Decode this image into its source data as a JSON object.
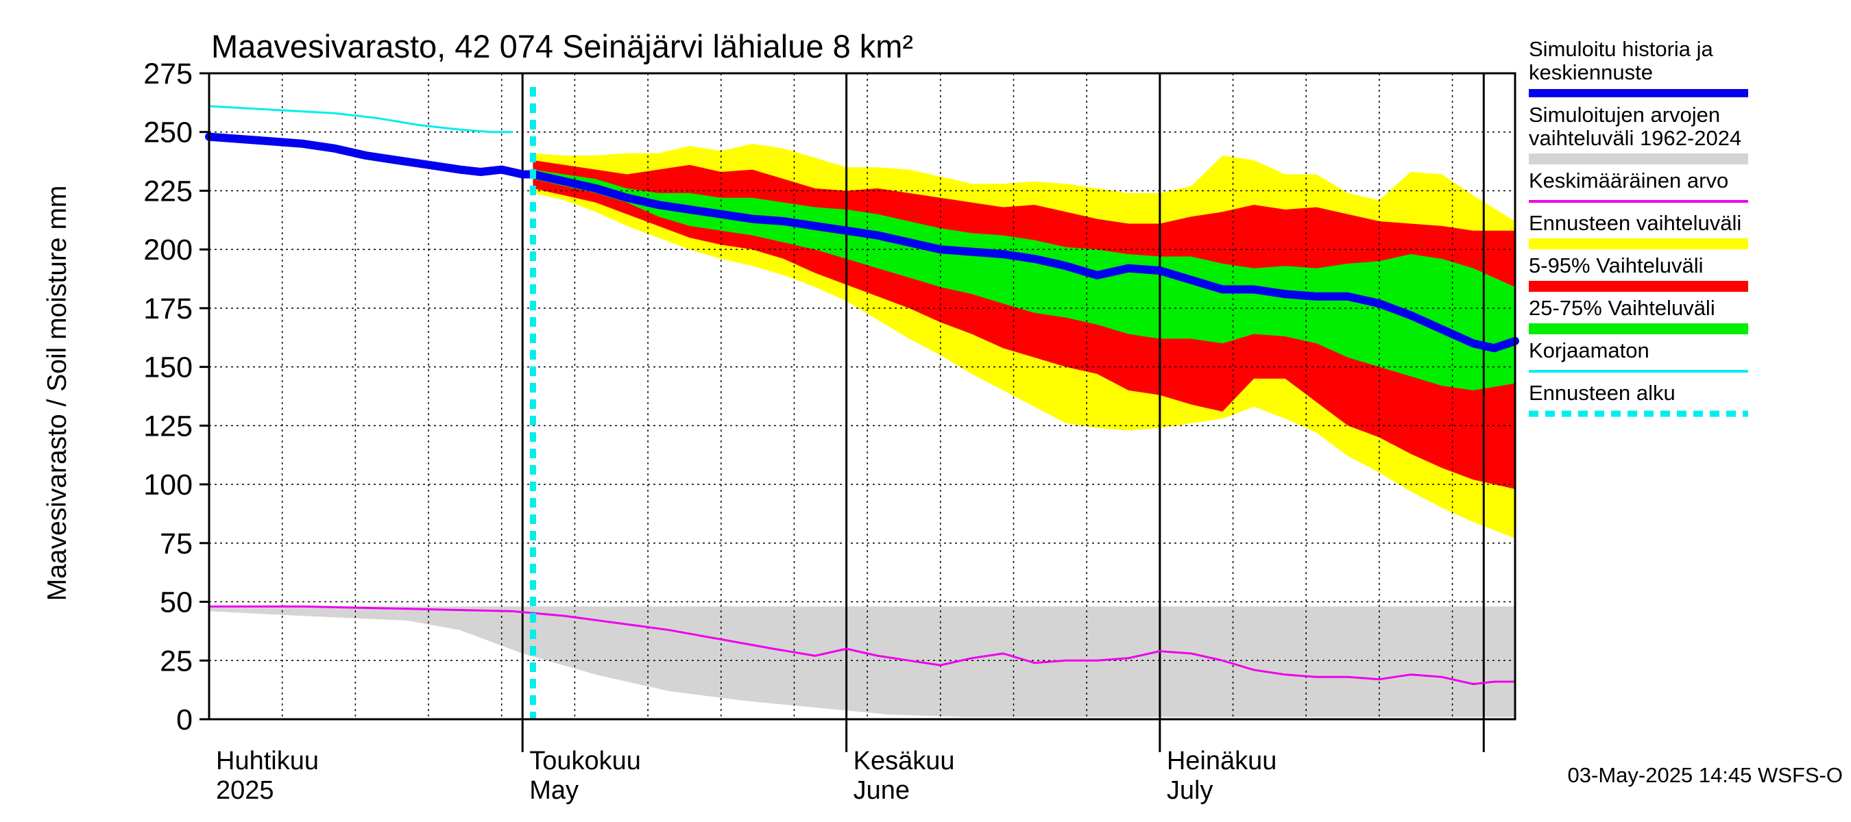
{
  "chart_data": {
    "type": "area",
    "title": "Maavesivarasto, 42 074 Seinäjärvi lähialue 8 km²",
    "ylabel": "Maavesivarasto / Soil moisture   mm",
    "ylim": [
      0,
      275
    ],
    "yticks": [
      "0",
      "25",
      "50",
      "75",
      "100",
      "125",
      "150",
      "175",
      "200",
      "225",
      "250",
      "275"
    ],
    "x_start": "2025-04-01",
    "x_end": "2025-08-04",
    "forecast_start": "2025-05-02",
    "months": [
      {
        "fi": "Huhtikuu",
        "en": "2025",
        "date": "2025-04-01"
      },
      {
        "fi": "Toukokuu",
        "en": "May",
        "date": "2025-05-01"
      },
      {
        "fi": "Kesäkuu",
        "en": "June",
        "date": "2025-06-01"
      },
      {
        "fi": "Heinäkuu",
        "en": "July",
        "date": "2025-07-01"
      }
    ],
    "legend": [
      {
        "label": "Simuloitu historia ja keskiennuste",
        "color": "#0000ee",
        "style": "thick-line"
      },
      {
        "label": "Simuloitujen arvojen vaihteluväli 1962-2024",
        "color": "#d4d4d4",
        "style": "band"
      },
      {
        "label": "Keskimääräinen arvo",
        "color": "#ee00ee",
        "style": "line"
      },
      {
        "label": "Ennusteen vaihteluväli",
        "color": "#ffff00",
        "style": "band"
      },
      {
        "label": "5-95% Vaihteluväli",
        "color": "#ff0000",
        "style": "band"
      },
      {
        "label": "25-75% Vaihteluväli",
        "color": "#00ee00",
        "style": "band"
      },
      {
        "label": "Korjaamaton",
        "color": "#00eeee",
        "style": "line"
      },
      {
        "label": "Ennusteen alku",
        "color": "#00eeee",
        "style": "dashed"
      }
    ],
    "footer": "03-May-2025 14:45 WSFS-O",
    "series": [
      {
        "name": "Simuloitu historia ja keskiennuste",
        "color": "#0000ee",
        "dates": [
          "2025-04-01",
          "2025-04-04",
          "2025-04-07",
          "2025-04-10",
          "2025-04-13",
          "2025-04-16",
          "2025-04-19",
          "2025-04-22",
          "2025-04-25",
          "2025-04-27",
          "2025-04-29",
          "2025-05-01",
          "2025-05-02",
          "2025-05-05",
          "2025-05-08",
          "2025-05-11",
          "2025-05-14",
          "2025-05-17",
          "2025-05-20",
          "2025-05-23",
          "2025-05-26",
          "2025-05-29",
          "2025-06-01",
          "2025-06-04",
          "2025-06-07",
          "2025-06-10",
          "2025-06-13",
          "2025-06-16",
          "2025-06-19",
          "2025-06-22",
          "2025-06-25",
          "2025-06-28",
          "2025-07-01",
          "2025-07-04",
          "2025-07-07",
          "2025-07-10",
          "2025-07-13",
          "2025-07-16",
          "2025-07-19",
          "2025-07-22",
          "2025-07-25",
          "2025-07-28",
          "2025-07-31",
          "2025-08-02",
          "2025-08-04"
        ],
        "values": [
          248,
          247,
          246,
          245,
          243,
          240,
          238,
          236,
          234,
          233,
          234,
          232,
          232,
          229,
          226,
          222,
          219,
          217,
          215,
          213,
          212,
          210,
          208,
          206,
          203,
          200,
          199,
          198,
          196,
          193,
          189,
          192,
          191,
          187,
          183,
          183,
          181,
          180,
          180,
          177,
          172,
          166,
          160,
          158,
          161
        ]
      },
      {
        "name": "Korjaamaton",
        "color": "#00eeee",
        "dates": [
          "2025-04-01",
          "2025-04-05",
          "2025-04-09",
          "2025-04-13",
          "2025-04-17",
          "2025-04-21",
          "2025-04-25",
          "2025-04-28",
          "2025-04-30"
        ],
        "values": [
          261,
          260,
          259,
          258,
          256,
          253,
          251,
          250,
          250
        ]
      },
      {
        "name": "Keskimääräinen arvo",
        "color": "#ee00ee",
        "dates": [
          "2025-04-01",
          "2025-04-10",
          "2025-04-20",
          "2025-04-30",
          "2025-05-05",
          "2025-05-10",
          "2025-05-15",
          "2025-05-20",
          "2025-05-25",
          "2025-05-29",
          "2025-06-01",
          "2025-06-04",
          "2025-06-07",
          "2025-06-10",
          "2025-06-13",
          "2025-06-16",
          "2025-06-19",
          "2025-06-22",
          "2025-06-25",
          "2025-06-28",
          "2025-07-01",
          "2025-07-04",
          "2025-07-07",
          "2025-07-10",
          "2025-07-13",
          "2025-07-16",
          "2025-07-19",
          "2025-07-22",
          "2025-07-25",
          "2025-07-28",
          "2025-07-31",
          "2025-08-02",
          "2025-08-04"
        ],
        "values": [
          48,
          48,
          47,
          46,
          44,
          41,
          38,
          34,
          30,
          27,
          30,
          27,
          25,
          23,
          26,
          28,
          24,
          25,
          25,
          26,
          29,
          28,
          25,
          21,
          19,
          18,
          18,
          17,
          19,
          18,
          15,
          16,
          16
        ]
      }
    ],
    "bands": [
      {
        "name": "Simuloitujen arvojen vaihteluväli 1962-2024",
        "color": "#d4d4d4",
        "dates": [
          "2025-04-01",
          "2025-04-10",
          "2025-04-20",
          "2025-04-25",
          "2025-05-01",
          "2025-05-08",
          "2025-05-15",
          "2025-05-22",
          "2025-05-29",
          "2025-06-05",
          "2025-06-12",
          "2025-06-19",
          "2025-06-26",
          "2025-07-03",
          "2025-07-10",
          "2025-07-17",
          "2025-07-24",
          "2025-07-31",
          "2025-08-04"
        ],
        "upper": [
          48,
          48,
          48,
          48,
          48,
          48,
          48,
          48,
          48,
          48,
          48,
          48,
          48,
          48,
          48,
          48,
          48,
          48,
          48
        ],
        "lower": [
          46,
          44,
          42,
          38,
          28,
          19,
          12,
          8,
          5,
          2,
          1,
          1,
          1,
          1,
          1,
          1,
          1,
          1,
          1
        ]
      },
      {
        "name": "Ennusteen vaihteluväli",
        "color": "#ffff00",
        "dates": [
          "2025-05-02",
          "2025-05-05",
          "2025-05-08",
          "2025-05-11",
          "2025-05-14",
          "2025-05-17",
          "2025-05-20",
          "2025-05-23",
          "2025-05-26",
          "2025-05-29",
          "2025-06-01",
          "2025-06-04",
          "2025-06-07",
          "2025-06-10",
          "2025-06-13",
          "2025-06-16",
          "2025-06-19",
          "2025-06-22",
          "2025-06-25",
          "2025-06-28",
          "2025-07-01",
          "2025-07-04",
          "2025-07-07",
          "2025-07-10",
          "2025-07-13",
          "2025-07-16",
          "2025-07-19",
          "2025-07-22",
          "2025-07-25",
          "2025-07-28",
          "2025-07-31",
          "2025-08-04"
        ],
        "upper": [
          241,
          240,
          240,
          241,
          241,
          244,
          242,
          245,
          243,
          239,
          235,
          235,
          234,
          231,
          228,
          228,
          229,
          228,
          226,
          224,
          224,
          227,
          240,
          238,
          232,
          232,
          224,
          221,
          233,
          232,
          223,
          212
        ],
        "lower": [
          224,
          221,
          216,
          210,
          205,
          200,
          196,
          193,
          189,
          184,
          178,
          170,
          162,
          155,
          147,
          140,
          133,
          126,
          124,
          123,
          124,
          126,
          128,
          133,
          128,
          122,
          112,
          105,
          97,
          90,
          84,
          77
        ]
      },
      {
        "name": "5-95% Vaihteluväli",
        "color": "#ff0000",
        "dates": [
          "2025-05-02",
          "2025-05-05",
          "2025-05-08",
          "2025-05-11",
          "2025-05-14",
          "2025-05-17",
          "2025-05-20",
          "2025-05-23",
          "2025-05-26",
          "2025-05-29",
          "2025-06-01",
          "2025-06-04",
          "2025-06-07",
          "2025-06-10",
          "2025-06-13",
          "2025-06-16",
          "2025-06-19",
          "2025-06-22",
          "2025-06-25",
          "2025-06-28",
          "2025-07-01",
          "2025-07-04",
          "2025-07-07",
          "2025-07-10",
          "2025-07-13",
          "2025-07-16",
          "2025-07-19",
          "2025-07-22",
          "2025-07-25",
          "2025-07-28",
          "2025-07-31",
          "2025-08-04"
        ],
        "upper": [
          238,
          236,
          234,
          232,
          234,
          236,
          233,
          234,
          230,
          226,
          225,
          226,
          224,
          222,
          220,
          218,
          219,
          216,
          213,
          211,
          211,
          214,
          216,
          219,
          217,
          218,
          215,
          212,
          211,
          210,
          208,
          208
        ],
        "lower": [
          226,
          223,
          220,
          215,
          210,
          205,
          202,
          200,
          196,
          190,
          185,
          180,
          175,
          169,
          164,
          158,
          154,
          150,
          147,
          140,
          138,
          134,
          131,
          145,
          145,
          135,
          125,
          120,
          113,
          107,
          102,
          98
        ]
      },
      {
        "name": "25-75% Vaihteluväli",
        "color": "#00ee00",
        "dates": [
          "2025-05-02",
          "2025-05-05",
          "2025-05-08",
          "2025-05-11",
          "2025-05-14",
          "2025-05-17",
          "2025-05-20",
          "2025-05-23",
          "2025-05-26",
          "2025-05-29",
          "2025-06-01",
          "2025-06-04",
          "2025-06-07",
          "2025-06-10",
          "2025-06-13",
          "2025-06-16",
          "2025-06-19",
          "2025-06-22",
          "2025-06-25",
          "2025-06-28",
          "2025-07-01",
          "2025-07-04",
          "2025-07-07",
          "2025-07-10",
          "2025-07-13",
          "2025-07-16",
          "2025-07-19",
          "2025-07-22",
          "2025-07-25",
          "2025-07-28",
          "2025-07-31",
          "2025-08-04"
        ],
        "upper": [
          234,
          232,
          230,
          226,
          224,
          224,
          222,
          222,
          220,
          218,
          217,
          215,
          212,
          209,
          207,
          206,
          204,
          201,
          200,
          198,
          197,
          197,
          194,
          192,
          193,
          192,
          194,
          195,
          198,
          196,
          192,
          184
        ],
        "lower": [
          230,
          227,
          224,
          220,
          214,
          210,
          208,
          206,
          203,
          200,
          196,
          192,
          188,
          184,
          181,
          177,
          173,
          171,
          168,
          164,
          162,
          162,
          160,
          164,
          163,
          160,
          154,
          150,
          146,
          142,
          140,
          143
        ]
      }
    ]
  }
}
